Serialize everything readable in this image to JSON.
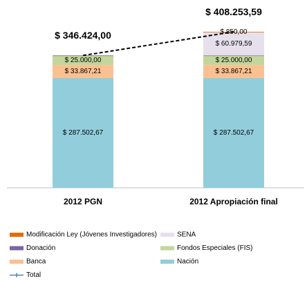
{
  "chart_data": {
    "type": "bar",
    "stacked": true,
    "categories": [
      "2012 PGN",
      "2012 Apropiación final"
    ],
    "ylim": [
      0,
      450000
    ],
    "series": [
      {
        "name": "Nación",
        "color": "#92cddc",
        "values": [
          287502.67,
          287502.67
        ],
        "value_labels": [
          "$ 287.502,67",
          "$ 287.502,67"
        ]
      },
      {
        "name": "Banca",
        "color": "#fac090",
        "values": [
          33867.21,
          33867.21
        ],
        "value_labels": [
          "$ 33.867,21",
          "$ 33.867,21"
        ]
      },
      {
        "name": "Fondos Especiales (FIS)",
        "color": "#c3d69b",
        "values": [
          25000,
          25000
        ],
        "value_labels": [
          "$ 25.000,00",
          "$ 25.000,00"
        ]
      },
      {
        "name": "Donación",
        "color": "#7f63a2",
        "values": [
          54.12,
          54.12
        ]
      },
      {
        "name": "SENA",
        "color": "#e6e0ec",
        "values": [
          null,
          60979.59
        ],
        "value_labels": [
          null,
          "$ 60.979,59"
        ]
      },
      {
        "name": "Modificación Ley (Jóvenes Investigadores)",
        "color": "#e36c09",
        "values": [
          null,
          850
        ],
        "value_labels": [
          null,
          "$ 850,00"
        ]
      },
      {
        "name": "Total",
        "type": "line",
        "color": "#000000",
        "values": [
          346424.0,
          408253.59
        ],
        "value_labels": [
          "$ 346.424,00",
          "$ 408.253,59"
        ]
      }
    ]
  }
}
